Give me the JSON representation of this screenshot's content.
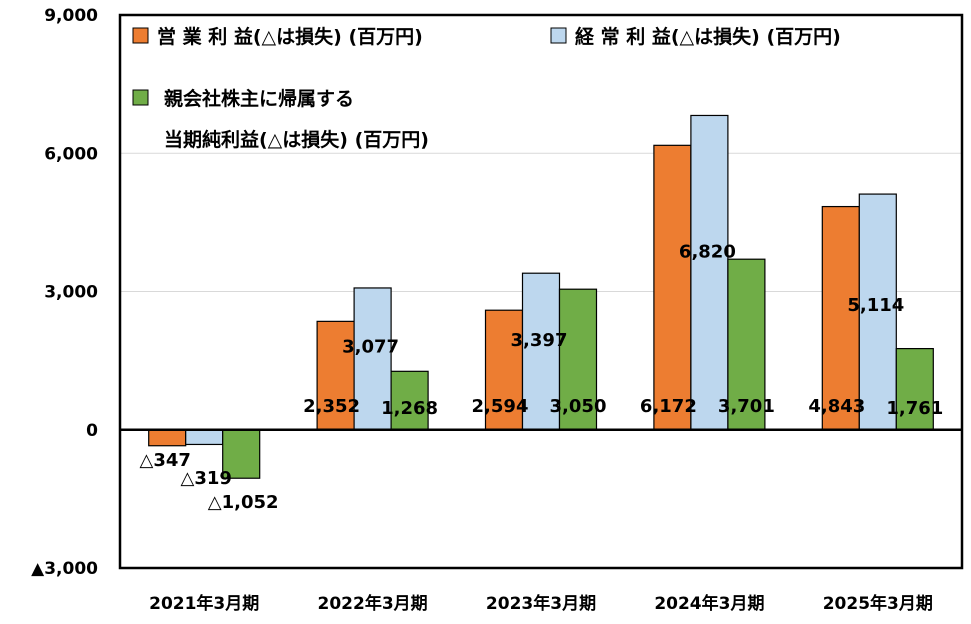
{
  "chart_data": {
    "type": "bar",
    "categories": [
      "2021年3月期",
      "2022年3月期",
      "2023年3月期",
      "2024年3月期",
      "2025年3月期"
    ],
    "series": [
      {
        "name": "営 業 利 益(△は損失) (百万円)",
        "color": "#ED7D31",
        "values": [
          -347,
          2352,
          2594,
          6172,
          4843
        ],
        "labels": [
          "△347",
          "2,352",
          "2,594",
          "6,172",
          "4,843"
        ]
      },
      {
        "name": "経 常 利 益(△は損失) (百万円)",
        "color": "#BDD7EE",
        "values": [
          -319,
          3077,
          3397,
          6820,
          5114
        ],
        "labels": [
          "△319",
          "3,077",
          "3,397",
          "6,820",
          "5,114"
        ]
      },
      {
        "name_lines": [
          "親会社株主に帰属する",
          "当期純利益(△は損失) (百万円)"
        ],
        "color": "#70AD47",
        "values": [
          -1052,
          1268,
          3050,
          3701,
          1761
        ],
        "labels": [
          "△1,052",
          "1,268",
          "3,050",
          "3,701",
          "1,761"
        ]
      }
    ],
    "yticks": [
      {
        "value": 9000,
        "label": "9,000"
      },
      {
        "value": 6000,
        "label": "6,000"
      },
      {
        "value": 3000,
        "label": "3,000"
      },
      {
        "value": 0,
        "label": "0"
      },
      {
        "value": -3000,
        "label": "▲3,000"
      }
    ],
    "ylim": [
      -3000,
      9000
    ],
    "grid": true,
    "legend_position": "top-left"
  }
}
